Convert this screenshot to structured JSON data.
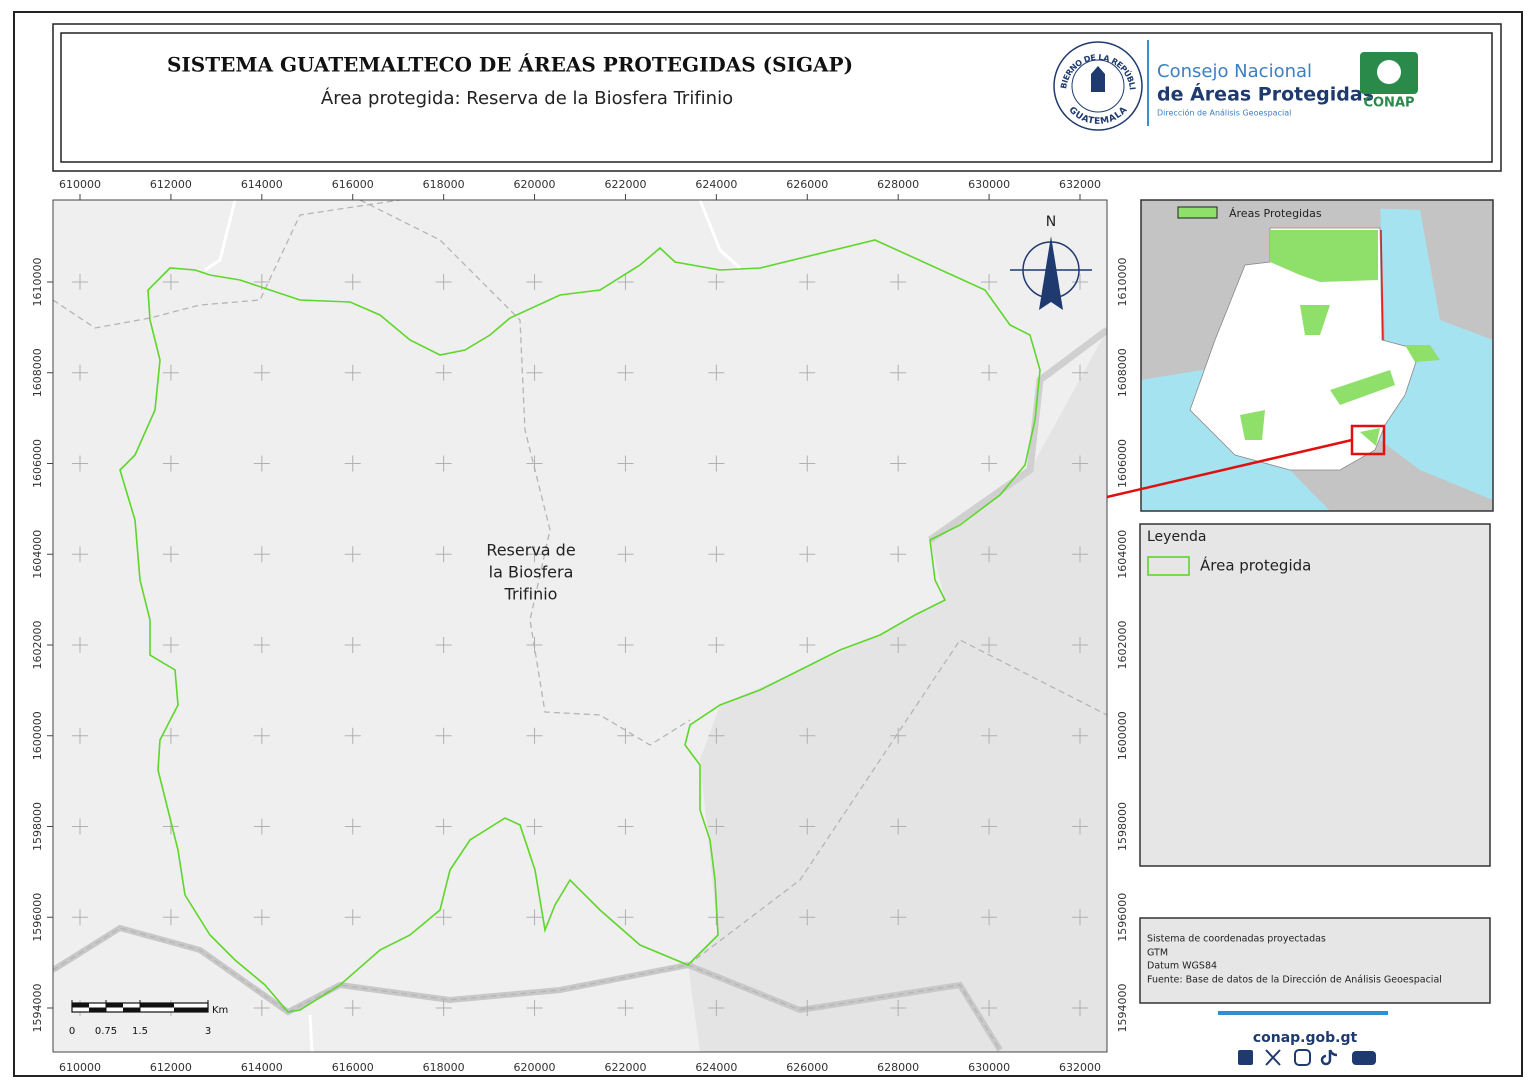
{
  "header": {
    "title": "SISTEMA GUATEMALTECO DE ÁREAS PROTEGIDAS  (SIGAP)",
    "subtitle": "Área protegida: Reserva de la Biosfera Trifinio"
  },
  "logos": {
    "seal_top": "GOBIERNO DE LA REPÚBLICA",
    "seal_bottom": "GUATEMALA",
    "org_line1": "Consejo Nacional",
    "org_line2": "de Áreas Protegidas",
    "org_line3": "Dirección de Análisis Geoespacial",
    "conap": "CONAP"
  },
  "map": {
    "xticks": [
      610000,
      612000,
      614000,
      616000,
      618000,
      620000,
      622000,
      624000,
      626000,
      628000,
      630000,
      632000
    ],
    "yticks": [
      1594000,
      1596000,
      1598000,
      1600000,
      1602000,
      1604000,
      1606000,
      1608000,
      1610000
    ],
    "north": "N",
    "area_label": [
      "Reserva de",
      "la Biosfera",
      "Trifinio"
    ],
    "scale_bar": {
      "ticks": [
        0,
        0.75,
        1.5,
        3
      ],
      "unit": "Km"
    }
  },
  "inset": {
    "legend": "Áreas Protegidas"
  },
  "legend": {
    "title": "Leyenda",
    "items": [
      "Área protegida"
    ]
  },
  "metadata": [
    "Sistema de coordenadas proyectadas",
    "GTM",
    "Datum WGS84",
    "Fuente: Base de datos de la Dirección de Análisis Geoespacial"
  ],
  "footer": {
    "url": "conap.gob.gt"
  }
}
